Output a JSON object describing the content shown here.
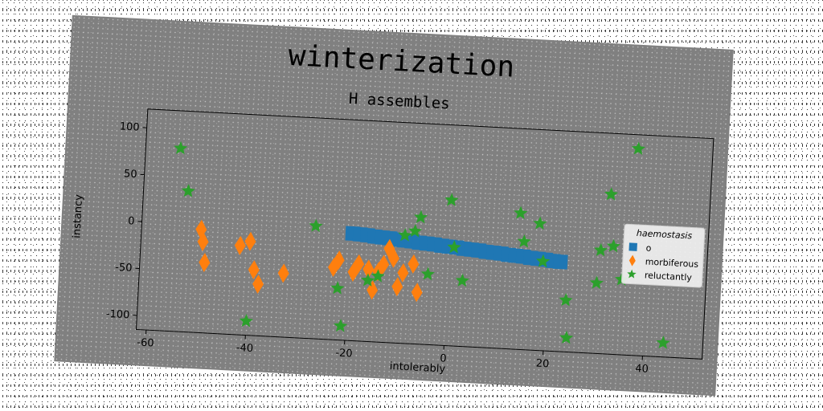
{
  "chart_data": {
    "type": "scatter",
    "title": "winterization",
    "subtitle": "H assembles",
    "xlabel": "intolerably",
    "ylabel": "instancy",
    "xlim": [
      -62,
      52
    ],
    "ylim": [
      -115,
      120
    ],
    "xticks": [
      -60,
      -40,
      -20,
      0,
      20,
      40
    ],
    "yticks": [
      100,
      50,
      0,
      -50,
      -100
    ],
    "legend": {
      "title": "haemostasis",
      "placement": "right"
    },
    "colors": {
      "o": "#1f77b4",
      "morbiferous": "#ff7f0e",
      "reluctantly": "#2ca02c"
    },
    "series": [
      {
        "name": "o",
        "marker": "square",
        "x": [
          -19.5,
          -18,
          -16.5,
          -15,
          -13.5,
          -12,
          -10.5,
          -9,
          -7.5,
          -6,
          -4.5,
          -3,
          -1.5,
          0,
          1.5,
          3,
          4.5,
          6,
          7.5,
          9,
          10.5,
          12,
          13.5,
          15,
          16.5,
          18,
          19.5,
          21,
          22.5
        ],
        "y": [
          -1,
          -1.5,
          -2,
          -3,
          -3.5,
          -4,
          -5,
          -5.5,
          -6,
          -7,
          -7.5,
          -8,
          -9,
          -9.5,
          -10,
          -11,
          -11.5,
          -12,
          -13,
          -13.5,
          -14,
          -15,
          -15.5,
          -16,
          -17,
          -17.5,
          -18,
          -19,
          -19.5
        ]
      },
      {
        "name": "morbiferous",
        "marker": "diamond",
        "x": [
          -50,
          -49.5,
          -49,
          -42,
          -40,
          -39,
          -38,
          -33,
          -23,
          -22,
          -19,
          -18,
          -16,
          -15,
          -14,
          -13,
          -12,
          -11,
          -10,
          -9,
          -7,
          -6
        ],
        "y": [
          -5,
          -18,
          -40,
          -20,
          -15,
          -45,
          -60,
          -47,
          -38,
          -30,
          -42,
          -33,
          -38,
          -60,
          -40,
          -32,
          -15,
          -25,
          -55,
          -40,
          -30,
          -60
        ]
      },
      {
        "name": "reluctantly",
        "marker": "star",
        "x": [
          -55,
          -53,
          -40,
          -27,
          -22,
          -21,
          -16,
          -14,
          -9,
          -7,
          -6,
          -4,
          0,
          1,
          3,
          14,
          15,
          18,
          19,
          24,
          24.5,
          30,
          30.5,
          32,
          33,
          35,
          37,
          44
        ],
        "y": [
          80,
          35,
          -100,
          5,
          -60,
          -100,
          -50,
          -45,
          0,
          5,
          20,
          -40,
          40,
          -10,
          -45,
          30,
          0,
          20,
          -20,
          -60,
          -100,
          -40,
          -5,
          55,
          0,
          -35,
          105,
          -100
        ]
      }
    ]
  }
}
